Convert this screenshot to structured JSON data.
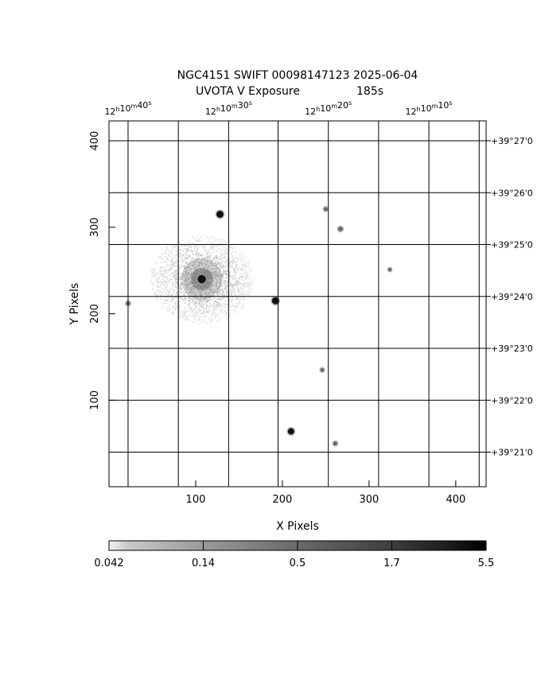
{
  "title": {
    "line1": "NGC4151 SWIFT 00098147123 2025-06-04",
    "line2_left": "UVOTA V Exposure",
    "line2_right": "185s"
  },
  "axes": {
    "xlabel": "X Pixels",
    "ylabel": "Y Pixels",
    "xlim": [
      0,
      435
    ],
    "ylim": [
      0,
      423
    ],
    "x_ticks": [
      {
        "value": 100,
        "label": "100"
      },
      {
        "value": 200,
        "label": "200"
      },
      {
        "value": 300,
        "label": "300"
      },
      {
        "value": 400,
        "label": "400"
      }
    ],
    "y_ticks": [
      {
        "value": 100,
        "label": "100"
      },
      {
        "value": 200,
        "label": "200"
      },
      {
        "value": 300,
        "label": "300"
      },
      {
        "value": 400,
        "label": "400"
      }
    ]
  },
  "ra_labels": [
    {
      "h": "12",
      "m": "10",
      "s": "40",
      "x": 22
    },
    {
      "h": "12",
      "m": "10",
      "s": "30",
      "x": 138
    },
    {
      "h": "12",
      "m": "10",
      "s": "20",
      "x": 253
    },
    {
      "h": "12",
      "m": "10",
      "s": "10",
      "x": 369
    }
  ],
  "ra_grid_x": [
    22,
    80,
    138,
    195,
    253,
    311,
    369,
    427
  ],
  "dec_labels": [
    {
      "label": "+39°27'0",
      "y": 400
    },
    {
      "label": "+39°26'0",
      "y": 340
    },
    {
      "label": "+39°25'0",
      "y": 280
    },
    {
      "label": "+39°24'0",
      "y": 220
    },
    {
      "label": "+39°23'0",
      "y": 160
    },
    {
      "label": "+39°22'0",
      "y": 100
    },
    {
      "label": "+39°21'0",
      "y": 40
    }
  ],
  "sources": [
    {
      "name": "NGC4151 nucleus",
      "x": 107,
      "y": 240,
      "strength": 1.0
    },
    {
      "name": "star",
      "x": 128,
      "y": 315,
      "strength": 0.8
    },
    {
      "name": "star",
      "x": 192,
      "y": 215,
      "strength": 0.8
    },
    {
      "name": "star",
      "x": 210,
      "y": 64,
      "strength": 0.7
    },
    {
      "name": "star",
      "x": 267,
      "y": 298,
      "strength": 0.4
    },
    {
      "name": "star",
      "x": 250,
      "y": 321,
      "strength": 0.3
    },
    {
      "name": "star",
      "x": 261,
      "y": 50,
      "strength": 0.3
    },
    {
      "name": "star",
      "x": 246,
      "y": 135,
      "strength": 0.25
    },
    {
      "name": "star",
      "x": 324,
      "y": 251,
      "strength": 0.2
    },
    {
      "name": "star",
      "x": 22,
      "y": 212,
      "strength": 0.3
    }
  ],
  "colorbar": {
    "labels": [
      "0.042",
      "0.14",
      "0.5",
      "1.7",
      "5.5"
    ],
    "colors": {
      "low": "#f0f0f0",
      "high": "#000000"
    }
  }
}
